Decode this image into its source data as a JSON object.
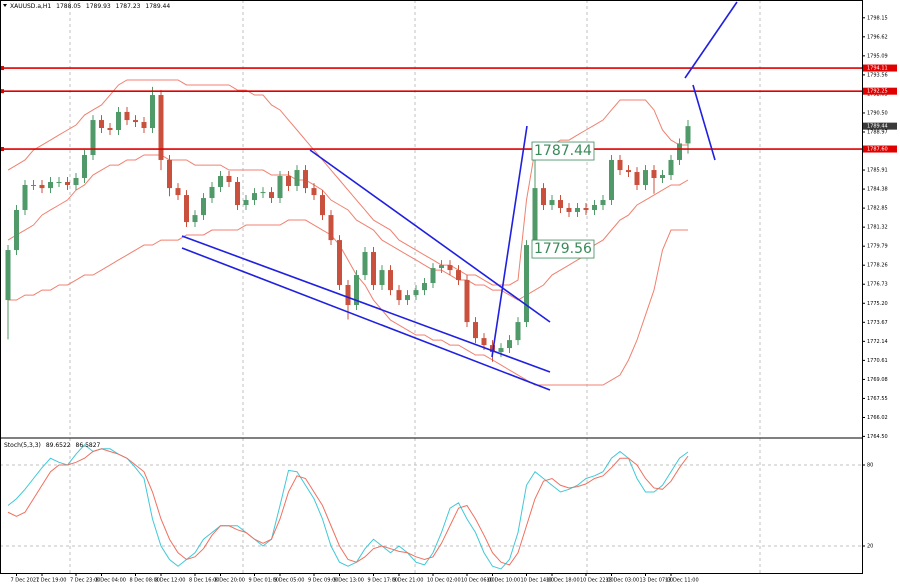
{
  "chart_data": [
    {
      "type": "candlestick",
      "title": "XAUUSD.a,H1",
      "categories": [
        null,
        "7 Dec 2021",
        null,
        null,
        "7 Dec 19:00",
        null,
        null,
        null,
        "7 Dec 23:00",
        null,
        null,
        "8 Dec 04:00",
        null,
        null,
        null,
        "8 Dec 08:00",
        null,
        null,
        "8 Dec 12:00",
        null,
        null,
        null,
        "8 Dec 16:00",
        null,
        null,
        "8 Dec 20:00",
        null,
        null,
        null,
        "9 Dec 01:00",
        null,
        null,
        "9 Dec 05:00",
        null,
        null,
        null,
        "9 Dec 09:00",
        null,
        null,
        "9 Dec 13:00",
        null,
        null,
        null,
        "9 Dec 17:00",
        null,
        null,
        "9 Dec 21:00",
        null,
        null,
        null,
        "10 Dec 02:00",
        null,
        null,
        null,
        "10 Dec 06:00",
        null,
        null,
        "10 Dec 10:00",
        null,
        null,
        null,
        "10 Dec 14:00",
        null,
        null,
        "10 Dec 18:00",
        null,
        null,
        null,
        "10 Dec 22:00",
        null,
        null,
        "13 Dec 03:00",
        null,
        null,
        null,
        "13 Dec 07:00",
        null,
        null,
        "13 Dec 11:00",
        null,
        null
      ],
      "open": [
        1775.46,
        1779.48,
        1782.7,
        1784.71,
        1784.71,
        1784.46,
        1784.95,
        1784.95,
        1784.71,
        1785.27,
        1787.12,
        1789.93,
        1789.29,
        1789.13,
        1790.58,
        1789.93,
        1789.77,
        1789.29,
        1791.94,
        1786.72,
        1784.46,
        1783.9,
        1781.73,
        1782.29,
        1783.66,
        1784.55,
        1785.43,
        1784.95,
        1783.1,
        1783.5,
        1784.06,
        1784.14,
        1783.66,
        1785.43,
        1784.63,
        1785.91,
        1784.46,
        1783.9,
        1782.29,
        1780.28,
        1776.67,
        1775.06,
        1777.47,
        1779.32,
        1776.67,
        1777.87,
        1776.26,
        1775.46,
        1775.86,
        1776.26,
        1776.83,
        1778.03,
        1778.27,
        1777.87,
        1777.07,
        1773.69,
        1772.4,
        1771.84,
        1771.28,
        1771.6,
        1772.24,
        1773.69,
        1779.88,
        1784.46,
        1783.1,
        1783.5,
        1782.86,
        1782.54,
        1782.86,
        1782.7,
        1783.1,
        1783.5,
        1786.72,
        1785.91,
        1785.75,
        1784.71,
        1785.91,
        1785.27,
        1785.51,
        1786.72,
        1788.05
      ],
      "high": [
        1779.88,
        1783.1,
        1785.11,
        1785.11,
        1785.11,
        1785.35,
        1785.35,
        1785.35,
        1785.67,
        1787.52,
        1790.33,
        1790.33,
        1789.69,
        1790.98,
        1790.98,
        1790.33,
        1790.17,
        1792.6,
        1792.34,
        1787.12,
        1784.86,
        1784.3,
        1782.69,
        1784.06,
        1784.95,
        1785.83,
        1785.83,
        1785.35,
        1783.9,
        1784.46,
        1784.54,
        1784.54,
        1785.83,
        1785.83,
        1786.31,
        1786.31,
        1784.86,
        1784.3,
        1782.69,
        1780.68,
        1777.07,
        1777.87,
        1779.72,
        1779.72,
        1778.27,
        1778.27,
        1776.66,
        1776.26,
        1776.66,
        1777.23,
        1778.43,
        1778.67,
        1778.67,
        1778.27,
        1777.47,
        1774.09,
        1772.8,
        1772.24,
        1772.0,
        1772.64,
        1774.09,
        1780.28,
        1787.44,
        1784.86,
        1783.9,
        1783.9,
        1783.26,
        1783.26,
        1783.26,
        1783.5,
        1783.9,
        1787.12,
        1787.12,
        1786.31,
        1786.15,
        1786.31,
        1786.31,
        1785.91,
        1787.12,
        1788.45,
        1789.93
      ],
      "low": [
        1772.3,
        1779.08,
        1782.3,
        1784.31,
        1784.06,
        1784.06,
        1784.55,
        1784.31,
        1784.31,
        1784.87,
        1786.72,
        1788.89,
        1788.73,
        1788.73,
        1789.53,
        1789.37,
        1788.89,
        1788.89,
        1785.9,
        1783.8,
        1783.5,
        1781.33,
        1781.33,
        1781.89,
        1783.26,
        1784.15,
        1784.55,
        1782.7,
        1782.7,
        1783.1,
        1783.66,
        1783.26,
        1783.26,
        1784.23,
        1784.23,
        1784.06,
        1783.5,
        1781.89,
        1779.88,
        1776.27,
        1773.9,
        1774.66,
        1777.07,
        1776.27,
        1776.27,
        1775.86,
        1775.06,
        1775.06,
        1775.46,
        1775.86,
        1776.43,
        1777.63,
        1777.47,
        1776.67,
        1773.29,
        1772.0,
        1771.44,
        1770.5,
        1770.88,
        1771.2,
        1771.84,
        1773.29,
        1779.56,
        1782.7,
        1782.7,
        1782.46,
        1782.14,
        1782.14,
        1782.3,
        1782.3,
        1782.7,
        1783.1,
        1785.51,
        1785.35,
        1784.31,
        1784.31,
        1784.0,
        1784.87,
        1785.11,
        1786.32,
        1787.23
      ],
      "close": [
        1779.48,
        1782.7,
        1784.71,
        1784.71,
        1784.46,
        1784.95,
        1784.95,
        1784.71,
        1785.27,
        1787.12,
        1789.93,
        1789.29,
        1789.13,
        1790.58,
        1789.93,
        1789.77,
        1789.29,
        1791.94,
        1786.72,
        1784.46,
        1783.9,
        1781.73,
        1782.29,
        1783.66,
        1784.55,
        1785.43,
        1784.95,
        1783.1,
        1783.5,
        1784.06,
        1784.14,
        1783.66,
        1785.43,
        1784.63,
        1785.91,
        1784.46,
        1783.9,
        1782.29,
        1780.28,
        1776.67,
        1775.06,
        1777.47,
        1779.32,
        1776.67,
        1777.87,
        1776.26,
        1775.46,
        1775.86,
        1776.26,
        1776.83,
        1778.03,
        1778.27,
        1777.87,
        1777.07,
        1773.69,
        1772.4,
        1771.84,
        1771.28,
        1771.6,
        1772.24,
        1773.69,
        1779.88,
        1784.46,
        1783.1,
        1783.5,
        1782.86,
        1782.54,
        1782.86,
        1782.7,
        1783.1,
        1783.5,
        1786.72,
        1785.91,
        1785.75,
        1784.71,
        1785.91,
        1785.27,
        1785.51,
        1786.72,
        1788.05,
        1789.44
      ],
      "up_color": "#4f9a68",
      "down_color": "#c9503c",
      "lines": [
        {
          "color": "#f08070",
          "values": [
            1785.91,
            1786.31,
            1786.72,
            1787.52,
            1787.92,
            1788.32,
            1788.73,
            1789.13,
            1789.53,
            1790.33,
            1790.74,
            1791.14,
            1791.94,
            1792.75,
            1793.15,
            1793.15,
            1793.15,
            1793.15,
            1793.15,
            1793.15,
            1793.15,
            1792.75,
            1792.75,
            1792.75,
            1792.75,
            1792.75,
            1792.75,
            1792.34,
            1792.34,
            1791.94,
            1791.94,
            1791.14,
            1790.74,
            1789.93,
            1789.13,
            1788.32,
            1787.52,
            1786.72,
            1785.91,
            1785.11,
            1784.3,
            1783.5,
            1782.7,
            1781.89,
            1781.49,
            1781.09,
            1780.28,
            1779.88,
            1779.48,
            1779.08,
            1778.68,
            1778.27,
            1778.27,
            1777.87,
            1777.47,
            1777.47,
            1777.07,
            1776.67,
            1776.67,
            1776.67,
            1777.07,
            1783.5,
            1787.52,
            1787.92,
            1787.92,
            1788.32,
            1788.32,
            1788.73,
            1789.13,
            1789.53,
            1789.93,
            1790.74,
            1791.54,
            1791.54,
            1791.54,
            1791.54,
            1790.74,
            1789.13,
            1788.32,
            1787.92,
            1787.92
          ]
        },
        {
          "color": "#f08070",
          "values": [
            1780.28,
            1780.69,
            1781.09,
            1781.49,
            1782.29,
            1782.7,
            1783.1,
            1783.5,
            1784.3,
            1784.71,
            1785.51,
            1785.91,
            1786.31,
            1786.31,
            1786.72,
            1786.72,
            1787.12,
            1787.12,
            1787.12,
            1786.72,
            1786.72,
            1786.72,
            1786.31,
            1786.31,
            1786.31,
            1786.31,
            1785.91,
            1785.91,
            1785.91,
            1785.91,
            1785.91,
            1785.51,
            1785.51,
            1785.51,
            1785.11,
            1785.11,
            1784.71,
            1784.3,
            1783.5,
            1783.1,
            1782.7,
            1781.89,
            1781.49,
            1781.09,
            1780.28,
            1779.88,
            1779.48,
            1779.08,
            1778.68,
            1778.27,
            1777.87,
            1777.87,
            1777.47,
            1777.07,
            1777.07,
            1776.67,
            1776.67,
            1776.26,
            1776.26,
            1775.86,
            1775.46,
            1775.86,
            1776.26,
            1776.67,
            1777.47,
            1777.87,
            1778.27,
            1778.68,
            1779.08,
            1779.88,
            1780.28,
            1781.09,
            1781.89,
            1782.29,
            1783.1,
            1783.5,
            1783.9,
            1784.3,
            1784.71,
            1784.71,
            1785.11
          ]
        },
        {
          "color": "#f08070",
          "values": [
            1775.46,
            1775.46,
            1775.86,
            1775.86,
            1776.26,
            1776.26,
            1776.67,
            1776.67,
            1777.07,
            1777.47,
            1777.47,
            1777.87,
            1778.27,
            1778.68,
            1779.08,
            1779.48,
            1779.88,
            1779.88,
            1780.28,
            1780.28,
            1780.28,
            1780.69,
            1780.69,
            1780.69,
            1781.09,
            1781.09,
            1781.09,
            1781.09,
            1781.49,
            1781.49,
            1781.49,
            1781.49,
            1781.49,
            1781.89,
            1781.89,
            1781.89,
            1781.49,
            1781.09,
            1780.69,
            1779.88,
            1778.68,
            1777.47,
            1776.67,
            1775.46,
            1774.66,
            1773.85,
            1773.45,
            1773.05,
            1772.65,
            1772.65,
            1772.24,
            1772.24,
            1771.84,
            1771.84,
            1771.44,
            1771.04,
            1771.04,
            1770.64,
            1770.24,
            1769.83,
            1769.43,
            1769.03,
            1768.63,
            1768.63,
            1768.63,
            1768.63,
            1768.63,
            1768.63,
            1768.63,
            1768.63,
            1768.63,
            1769.03,
            1769.43,
            1770.64,
            1772.24,
            1774.25,
            1776.26,
            1779.48,
            1781.09,
            1781.09,
            1781.09
          ]
        }
      ],
      "levels": [
        1794.11,
        1792.25,
        {
          "value": 1787.6,
          "label": "1787.60"
        }
      ],
      "level_color": "#e00000",
      "ylim": [
        1764.37,
        1799.58
      ],
      "yticks": [
        1798.15,
        1796.62,
        1795.09,
        1793.56,
        1792.03,
        {
          "value": 1790.5,
          "label": "1790.50"
        },
        1788.97,
        1787.44,
        1785.91,
        1784.38,
        1782.85,
        1781.32,
        1779.79,
        1778.26,
        1776.73,
        {
          "value": 1775.2,
          "label": "1775.20"
        },
        1773.67,
        1772.14,
        1770.61,
        1769.08,
        1767.55,
        1766.02,
        {
          "value": 1764.5,
          "label": "1764.50"
        }
      ]
    },
    {
      "type": "line",
      "title": "Stoch(5,3,3)",
      "series": [
        {
          "color": "#40c8d8",
          "values": [
            50,
            55,
            62,
            70,
            78,
            85,
            82,
            80,
            88,
            95,
            90,
            92,
            92,
            88,
            85,
            78,
            70,
            40,
            20,
            10,
            5,
            10,
            15,
            25,
            30,
            35,
            35,
            35,
            30,
            25,
            20,
            25,
            50,
            76,
            75,
            65,
            55,
            40,
            20,
            8,
            5,
            8,
            18,
            25,
            20,
            15,
            20,
            15,
            8,
            6,
            15,
            30,
            48,
            52,
            40,
            30,
            15,
            5,
            3,
            10,
            30,
            65,
            75,
            70,
            65,
            60,
            62,
            65,
            70,
            72,
            75,
            85,
            90,
            85,
            70,
            60,
            60,
            65,
            75,
            85,
            89.6522
          ]
        },
        {
          "color": "#f07060",
          "values": [
            45,
            42,
            45,
            55,
            65,
            75,
            80,
            80,
            82,
            85,
            90,
            92,
            90,
            88,
            85,
            80,
            75,
            60,
            40,
            25,
            15,
            10,
            12,
            18,
            28,
            35,
            35,
            32,
            30,
            25,
            22,
            25,
            40,
            60,
            72,
            70,
            60,
            50,
            35,
            20,
            10,
            8,
            12,
            18,
            20,
            18,
            16,
            15,
            12,
            10,
            12,
            22,
            35,
            48,
            50,
            40,
            28,
            15,
            8,
            6,
            15,
            35,
            55,
            68,
            70,
            65,
            63,
            64,
            66,
            70,
            72,
            78,
            85,
            85,
            80,
            70,
            63,
            62,
            68,
            78,
            86.5827
          ]
        }
      ],
      "ylim": [
        0,
        100
      ],
      "yticks": [
        20,
        80
      ]
    }
  ]
}
